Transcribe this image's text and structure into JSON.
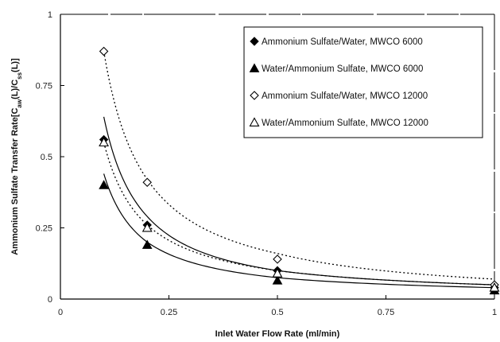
{
  "chart_data": {
    "type": "scatter",
    "title": "",
    "xlabel": "Inlet Water Flow Rate (ml/min)",
    "ylabel": {
      "prefix": "Ammonium Sulfate Transfer Rate[C",
      "sub1": "aw",
      "mid": "(L)/C",
      "sub2": "ss",
      "suffix": "(L)]"
    },
    "xlim": [
      0,
      1
    ],
    "ylim": [
      0,
      1
    ],
    "x_ticks": [
      0,
      0.25,
      0.5,
      0.75,
      1
    ],
    "y_ticks": [
      0,
      0.25,
      0.5,
      0.75,
      1
    ],
    "x_tick_labels": [
      "0",
      "0.25",
      "0.5",
      "0.75",
      "1"
    ],
    "y_tick_labels": [
      "0",
      "0.25",
      "0.5",
      "0.75",
      "1"
    ],
    "grid": false,
    "legend_position": "top-right",
    "series": [
      {
        "name": "Ammonium Sulfate/Water, MWCO 6000",
        "marker": "filled-diamond",
        "line": "solid",
        "x": [
          0.1,
          0.2,
          0.5,
          1.0
        ],
        "y": [
          0.56,
          0.26,
          0.1,
          0.04
        ],
        "fit_y": [
          0.64,
          0.29,
          0.1,
          0.05
        ]
      },
      {
        "name": "Water/Ammonium Sulfate, MWCO 6000",
        "marker": "filled-triangle",
        "line": "solid",
        "x": [
          0.1,
          0.2,
          0.5,
          1.0
        ],
        "y": [
          0.4,
          0.19,
          0.065,
          0.03
        ],
        "fit_y": [
          0.44,
          0.2,
          0.075,
          0.04
        ]
      },
      {
        "name": "Ammonium Sulfate/Water, MWCO 12000",
        "marker": "open-diamond",
        "line": "dotted",
        "x": [
          0.1,
          0.2,
          0.5,
          1.0
        ],
        "y": [
          0.87,
          0.41,
          0.14,
          0.05
        ],
        "fit_y": [
          0.87,
          0.42,
          0.16,
          0.07
        ]
      },
      {
        "name": "Water/Ammonium Sulfate, MWCO 12000",
        "marker": "open-triangle",
        "line": "dotted",
        "x": [
          0.1,
          0.2,
          0.5,
          1.0
        ],
        "y": [
          0.55,
          0.25,
          0.09,
          0.04
        ],
        "fit_y": [
          0.55,
          0.26,
          0.1,
          0.05
        ]
      }
    ]
  }
}
